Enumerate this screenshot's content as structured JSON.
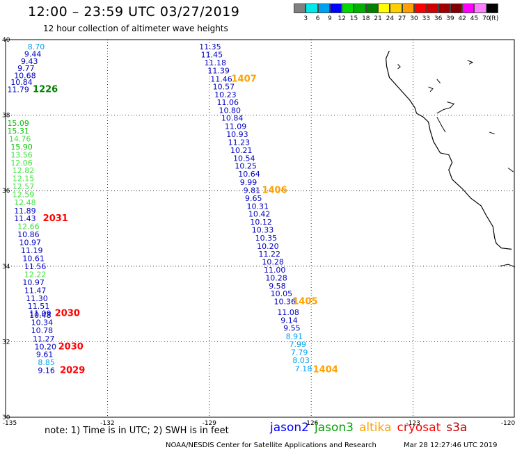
{
  "title": "12:00 – 23:59 UTC 03/27/2019",
  "subtitle": "12 hour collection of altimeter wave heights",
  "color_scale": {
    "labels": [
      "3",
      "6",
      "9",
      "12",
      "15",
      "18",
      "21",
      "24",
      "27",
      "30",
      "33",
      "36",
      "39",
      "42",
      "45",
      "70"
    ],
    "unit": "(ft)",
    "colors": [
      "#808080",
      "#00e8e8",
      "#00a0f0",
      "#0000ff",
      "#00d800",
      "#00b000",
      "#008000",
      "#ffff00",
      "#ffd000",
      "#ffa000",
      "#ff0000",
      "#d00000",
      "#a00000",
      "#800000",
      "#ff00ff",
      "#ff80ff",
      "#000000"
    ]
  },
  "axes": {
    "lon_labels": [
      "-135",
      "-132",
      "-129",
      "-126",
      "-123",
      "-120"
    ],
    "lat_labels": [
      "40",
      "38",
      "36",
      "34",
      "32",
      "30"
    ],
    "lon_range": [
      -135,
      -120
    ],
    "lat_range": [
      30,
      40
    ]
  },
  "tracks": [
    {
      "id": "track-west-upper",
      "points": [
        {
          "v": "8.70",
          "lon": -134.35,
          "lat": 39.74,
          "color": "#00a0f0"
        },
        {
          "v": "9.44",
          "lon": -134.45,
          "lat": 39.55,
          "color": "#0000c0"
        },
        {
          "v": "9.43",
          "lon": -134.55,
          "lat": 39.36,
          "color": "#0000c0"
        },
        {
          "v": "9.77",
          "lon": -134.65,
          "lat": 39.17,
          "color": "#0000c0"
        },
        {
          "v": "10.68",
          "lon": -134.75,
          "lat": 38.98,
          "color": "#0000c0"
        },
        {
          "v": "10.84",
          "lon": -134.85,
          "lat": 38.8,
          "color": "#0000c0"
        },
        {
          "v": "11.79",
          "lon": -134.95,
          "lat": 38.61,
          "color": "#0000c0"
        }
      ]
    },
    {
      "id": "track-central",
      "points": [
        {
          "v": "11.35",
          "lon": -129.3,
          "lat": 39.74,
          "color": "#0000c0"
        },
        {
          "v": "11.45",
          "lon": -129.25,
          "lat": 39.53,
          "color": "#0000c0"
        },
        {
          "v": "11.18",
          "lon": -129.15,
          "lat": 39.32,
          "color": "#0000c0"
        },
        {
          "v": "11.39",
          "lon": -129.05,
          "lat": 39.11,
          "color": "#0000c0"
        },
        {
          "v": "11.46",
          "lon": -128.97,
          "lat": 38.89,
          "color": "#0000c0"
        },
        {
          "v": "10.57",
          "lon": -128.9,
          "lat": 38.68,
          "color": "#0000c0"
        },
        {
          "v": "10.23",
          "lon": -128.85,
          "lat": 38.47,
          "color": "#0000c0"
        },
        {
          "v": "11.06",
          "lon": -128.78,
          "lat": 38.27,
          "color": "#0000c0"
        },
        {
          "v": "10.80",
          "lon": -128.72,
          "lat": 38.06,
          "color": "#0000c0"
        },
        {
          "v": "10.84",
          "lon": -128.65,
          "lat": 37.85,
          "color": "#0000c0"
        },
        {
          "v": "11.09",
          "lon": -128.55,
          "lat": 37.63,
          "color": "#0000c0"
        },
        {
          "v": "10.93",
          "lon": -128.5,
          "lat": 37.42,
          "color": "#0000c0"
        },
        {
          "v": "11.23",
          "lon": -128.45,
          "lat": 37.21,
          "color": "#0000c0"
        },
        {
          "v": "10.21",
          "lon": -128.38,
          "lat": 37.0,
          "color": "#0000c0"
        },
        {
          "v": "10.54",
          "lon": -128.3,
          "lat": 36.79,
          "color": "#0000c0"
        },
        {
          "v": "10.25",
          "lon": -128.25,
          "lat": 36.58,
          "color": "#0000c0"
        },
        {
          "v": "10.64",
          "lon": -128.15,
          "lat": 36.37,
          "color": "#0000c0"
        },
        {
          "v": "9.99",
          "lon": -128.1,
          "lat": 36.15,
          "color": "#0000c0"
        },
        {
          "v": "9.81",
          "lon": -128.0,
          "lat": 35.94,
          "color": "#0000c0"
        },
        {
          "v": "9.65",
          "lon": -127.95,
          "lat": 35.73,
          "color": "#0000c0"
        },
        {
          "v": "10.31",
          "lon": -127.9,
          "lat": 35.52,
          "color": "#0000c0"
        },
        {
          "v": "10.42",
          "lon": -127.85,
          "lat": 35.31,
          "color": "#0000c0"
        },
        {
          "v": "10.12",
          "lon": -127.8,
          "lat": 35.1,
          "color": "#0000c0"
        },
        {
          "v": "10.33",
          "lon": -127.75,
          "lat": 34.89,
          "color": "#0000c0"
        },
        {
          "v": "10.35",
          "lon": -127.65,
          "lat": 34.68,
          "color": "#0000c0"
        },
        {
          "v": "10.20",
          "lon": -127.6,
          "lat": 34.46,
          "color": "#0000c0"
        },
        {
          "v": "11.22",
          "lon": -127.55,
          "lat": 34.25,
          "color": "#0000c0"
        },
        {
          "v": "10.28",
          "lon": -127.45,
          "lat": 34.04,
          "color": "#0000c0"
        },
        {
          "v": "11.00",
          "lon": -127.4,
          "lat": 33.83,
          "color": "#0000c0"
        },
        {
          "v": "10.28",
          "lon": -127.35,
          "lat": 33.62,
          "color": "#0000c0"
        },
        {
          "v": "9.58",
          "lon": -127.25,
          "lat": 33.41,
          "color": "#0000c0"
        },
        {
          "v": "10.05",
          "lon": -127.2,
          "lat": 33.2,
          "color": "#0000c0"
        },
        {
          "v": "10.36",
          "lon": -127.1,
          "lat": 32.99,
          "color": "#0000c0"
        },
        {
          "v": "11.08",
          "lon": -127.0,
          "lat": 32.71,
          "color": "#0000c0"
        },
        {
          "v": "9.14",
          "lon": -126.9,
          "lat": 32.5,
          "color": "#0000c0"
        },
        {
          "v": "9.55",
          "lon": -126.82,
          "lat": 32.29,
          "color": "#0000c0"
        },
        {
          "v": "8.91",
          "lon": -126.75,
          "lat": 32.07,
          "color": "#00a0f0"
        },
        {
          "v": "7.99",
          "lon": -126.65,
          "lat": 31.86,
          "color": "#00a0f0"
        },
        {
          "v": "7.79",
          "lon": -126.6,
          "lat": 31.65,
          "color": "#00a0f0"
        },
        {
          "v": "8.03",
          "lon": -126.55,
          "lat": 31.44,
          "color": "#00a0f0"
        },
        {
          "v": "7.18",
          "lon": -126.48,
          "lat": 31.22,
          "color": "#00a0f0"
        }
      ]
    },
    {
      "id": "track-west-middle",
      "points": [
        {
          "v": "15.09",
          "lon": -134.95,
          "lat": 37.72,
          "color": "#00c000"
        },
        {
          "v": "15.31",
          "lon": -134.95,
          "lat": 37.51,
          "color": "#00c000"
        },
        {
          "v": "14.76",
          "lon": -134.9,
          "lat": 37.3,
          "color": "#40e040"
        },
        {
          "v": "15.90",
          "lon": -134.85,
          "lat": 37.09,
          "color": "#00c000"
        },
        {
          "v": "13.56",
          "lon": -134.85,
          "lat": 36.88,
          "color": "#40e040"
        },
        {
          "v": "12.06",
          "lon": -134.85,
          "lat": 36.67,
          "color": "#40e040"
        },
        {
          "v": "12.82",
          "lon": -134.8,
          "lat": 36.46,
          "color": "#40e040"
        },
        {
          "v": "12.15",
          "lon": -134.8,
          "lat": 36.25,
          "color": "#40e040"
        },
        {
          "v": "12.57",
          "lon": -134.8,
          "lat": 36.04,
          "color": "#40e040"
        },
        {
          "v": "12.59",
          "lon": -134.8,
          "lat": 35.83,
          "color": "#40e040"
        },
        {
          "v": "12.48",
          "lon": -134.75,
          "lat": 35.62,
          "color": "#40e040"
        },
        {
          "v": "11.89",
          "lon": -134.75,
          "lat": 35.4,
          "color": "#0000c0"
        },
        {
          "v": "11.43",
          "lon": -134.75,
          "lat": 35.19,
          "color": "#0000c0"
        },
        {
          "v": "12.66",
          "lon": -134.65,
          "lat": 34.98,
          "color": "#40e040"
        },
        {
          "v": "10.86",
          "lon": -134.65,
          "lat": 34.77,
          "color": "#0000c0"
        },
        {
          "v": "10.97",
          "lon": -134.6,
          "lat": 34.56,
          "color": "#0000c0"
        },
        {
          "v": "11.19",
          "lon": -134.55,
          "lat": 34.35,
          "color": "#0000c0"
        },
        {
          "v": "10.61",
          "lon": -134.5,
          "lat": 34.13,
          "color": "#0000c0"
        },
        {
          "v": "11.56",
          "lon": -134.45,
          "lat": 33.92,
          "color": "#0000c0"
        },
        {
          "v": "12.22",
          "lon": -134.45,
          "lat": 33.71,
          "color": "#40e040"
        },
        {
          "v": "10.97",
          "lon": -134.5,
          "lat": 33.5,
          "color": "#0000c0"
        },
        {
          "v": "11.47",
          "lon": -134.45,
          "lat": 33.29,
          "color": "#0000c0"
        },
        {
          "v": "11.30",
          "lon": -134.4,
          "lat": 33.08,
          "color": "#0000c0"
        },
        {
          "v": "11.51",
          "lon": -134.35,
          "lat": 32.87,
          "color": "#0000c0"
        },
        {
          "v": "11.09",
          "lon": -134.3,
          "lat": 32.68,
          "color": "#0000c0"
        },
        {
          "v": "10.48",
          "lon": -134.3,
          "lat": 32.63,
          "color": "#0000c0"
        },
        {
          "v": "10.34",
          "lon": -134.25,
          "lat": 32.44,
          "color": "#0000c0"
        },
        {
          "v": "10.78",
          "lon": -134.25,
          "lat": 32.23,
          "color": "#0000c0"
        },
        {
          "v": "11.27",
          "lon": -134.2,
          "lat": 32.01,
          "color": "#0000c0"
        },
        {
          "v": "10.20",
          "lon": -134.15,
          "lat": 31.8,
          "color": "#0000c0"
        },
        {
          "v": "9.61",
          "lon": -134.1,
          "lat": 31.59,
          "color": "#0000c0"
        },
        {
          "v": "8.85",
          "lon": -134.05,
          "lat": 31.38,
          "color": "#00a0f0"
        },
        {
          "v": "9.16",
          "lon": -134.05,
          "lat": 31.17,
          "color": "#0000c0"
        }
      ]
    }
  ],
  "time_labels": [
    {
      "text": "1226",
      "lon": -134.2,
      "lat": 38.61,
      "color": "#008000"
    },
    {
      "text": "1407",
      "lon": -128.35,
      "lat": 38.89,
      "color": "#ffa000"
    },
    {
      "text": "1406",
      "lon": -127.45,
      "lat": 35.94,
      "color": "#ffa000"
    },
    {
      "text": "2031",
      "lon": -133.9,
      "lat": 35.19,
      "color": "#ff0000"
    },
    {
      "text": "1405",
      "lon": -126.55,
      "lat": 32.99,
      "color": "#ffa000"
    },
    {
      "text": "2030",
      "lon": -133.55,
      "lat": 32.68,
      "color": "#ff0000"
    },
    {
      "text": "2030",
      "lon": -133.45,
      "lat": 31.8,
      "color": "#ff0000"
    },
    {
      "text": "1404",
      "lon": -125.95,
      "lat": 31.19,
      "color": "#ffa000"
    },
    {
      "text": "2029",
      "lon": -133.4,
      "lat": 31.17,
      "color": "#ff0000"
    }
  ],
  "coastline": [
    [
      -123.7,
      39.7
    ],
    [
      -123.8,
      39.5
    ],
    [
      -123.78,
      39.3
    ],
    [
      -123.7,
      39.0
    ],
    [
      -123.6,
      38.9
    ],
    [
      -123.4,
      38.7
    ],
    [
      -123.1,
      38.4
    ],
    [
      -122.95,
      38.2
    ],
    [
      -122.9,
      38.05
    ],
    [
      -122.7,
      37.95
    ],
    [
      -122.55,
      37.82
    ],
    [
      -122.5,
      37.6
    ],
    [
      -122.4,
      37.3
    ],
    [
      -122.2,
      37.0
    ],
    [
      -121.95,
      36.95
    ],
    [
      -121.85,
      36.75
    ],
    [
      -121.95,
      36.55
    ],
    [
      -121.85,
      36.3
    ],
    [
      -121.55,
      36.05
    ],
    [
      -121.3,
      35.8
    ],
    [
      -121.0,
      35.6
    ],
    [
      -120.85,
      35.35
    ],
    [
      -120.65,
      35.05
    ],
    [
      -120.6,
      34.75
    ],
    [
      -120.55,
      34.6
    ],
    [
      -120.4,
      34.48
    ],
    [
      -120.1,
      34.45
    ]
  ],
  "islands": [
    [
      [
        -123.45,
        39.35
      ],
      [
        -123.38,
        39.28
      ],
      [
        -123.45,
        39.23
      ]
    ],
    [
      [
        -122.55,
        38.75
      ],
      [
        -122.42,
        38.7
      ],
      [
        -122.5,
        38.62
      ]
    ],
    [
      [
        -122.3,
        38.95
      ],
      [
        -122.2,
        38.85
      ]
    ],
    [
      [
        -121.4,
        39.45
      ],
      [
        -121.25,
        39.4
      ],
      [
        -121.35,
        39.35
      ]
    ],
    [
      [
        -122.0,
        38.35
      ],
      [
        -121.8,
        38.3
      ],
      [
        -121.9,
        38.2
      ],
      [
        -122.1,
        38.15
      ],
      [
        -122.3,
        38.05
      ]
    ],
    [
      [
        -122.3,
        37.95
      ],
      [
        -122.15,
        37.7
      ],
      [
        -122.05,
        37.55
      ]
    ],
    [
      [
        -120.75,
        37.55
      ],
      [
        -120.6,
        37.5
      ]
    ],
    [
      [
        -120.2,
        36.6
      ],
      [
        -120.05,
        36.5
      ]
    ],
    [
      [
        -120.45,
        34.0
      ],
      [
        -120.2,
        34.05
      ],
      [
        -120.0,
        33.98
      ]
    ]
  ],
  "footer": {
    "note": "note: 1) Time is in UTC; 2) SWH is in feet",
    "satellites": [
      {
        "name": "jason2",
        "color": "#0000ff"
      },
      {
        "name": "jason3",
        "color": "#00a000"
      },
      {
        "name": "altika",
        "color": "#ffa000"
      },
      {
        "name": "cryosat",
        "color": "#ff0000"
      },
      {
        "name": "s3a",
        "color": "#c00000"
      }
    ],
    "credit": "NOAA/NESDIS Center for Satellite Applications and Research",
    "timestamp": "Mar 28 12:27:46 UTC 2019"
  }
}
